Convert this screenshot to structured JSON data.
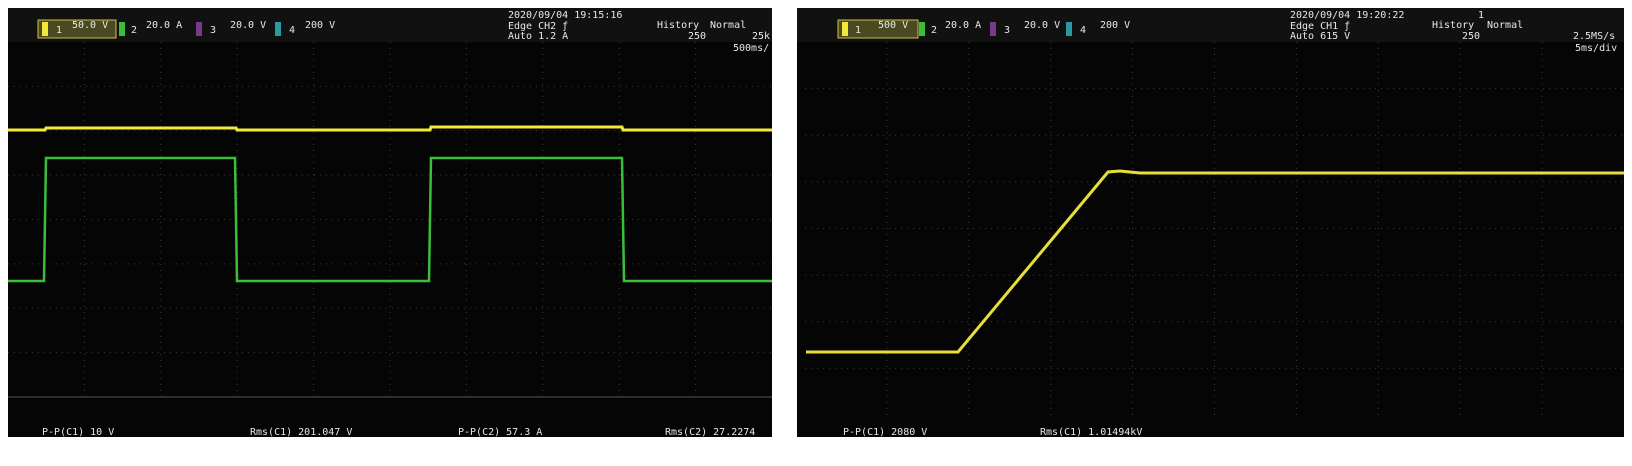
{
  "scopes": [
    {
      "channels": [
        {
          "number": "1",
          "scale": "50.0 V"
        },
        {
          "number": "2",
          "scale": "20.0 A"
        },
        {
          "number": "3",
          "scale": "20.0 V"
        },
        {
          "number": "4",
          "scale": "200 V"
        }
      ],
      "timestamp": "2020/09/04 19:15:16",
      "trigger": "Edge CH2 ƒ",
      "trigger_level": "Auto 1.2 A",
      "history": "History",
      "history_count": "250",
      "mode": "Normal",
      "sample_rate": "25k",
      "timebase": "500ms/",
      "measurements": [
        "P-P(C1)  10 V",
        "Rms(C1)  201.047 V",
        "P-P(C2)  57.3 A",
        "Rms(C2)  27.2274"
      ]
    },
    {
      "channels": [
        {
          "number": "1",
          "scale": "500 V"
        },
        {
          "number": "2",
          "scale": "20.0 A"
        },
        {
          "number": "3",
          "scale": "20.0 V"
        },
        {
          "number": "4",
          "scale": "200 V"
        }
      ],
      "timestamp": "2020/09/04 19:20:22",
      "acquisition": "1",
      "trigger": "Edge CH1 ƒ",
      "trigger_level": "Auto 615 V",
      "history": "History",
      "history_count": "250",
      "mode": "Normal",
      "sample_rate": "2.5MS/s",
      "timebase": "5ms/div",
      "measurements": [
        "P-P(C1)  2080 V",
        "Rms(C1)  1.01494kV"
      ]
    }
  ]
}
